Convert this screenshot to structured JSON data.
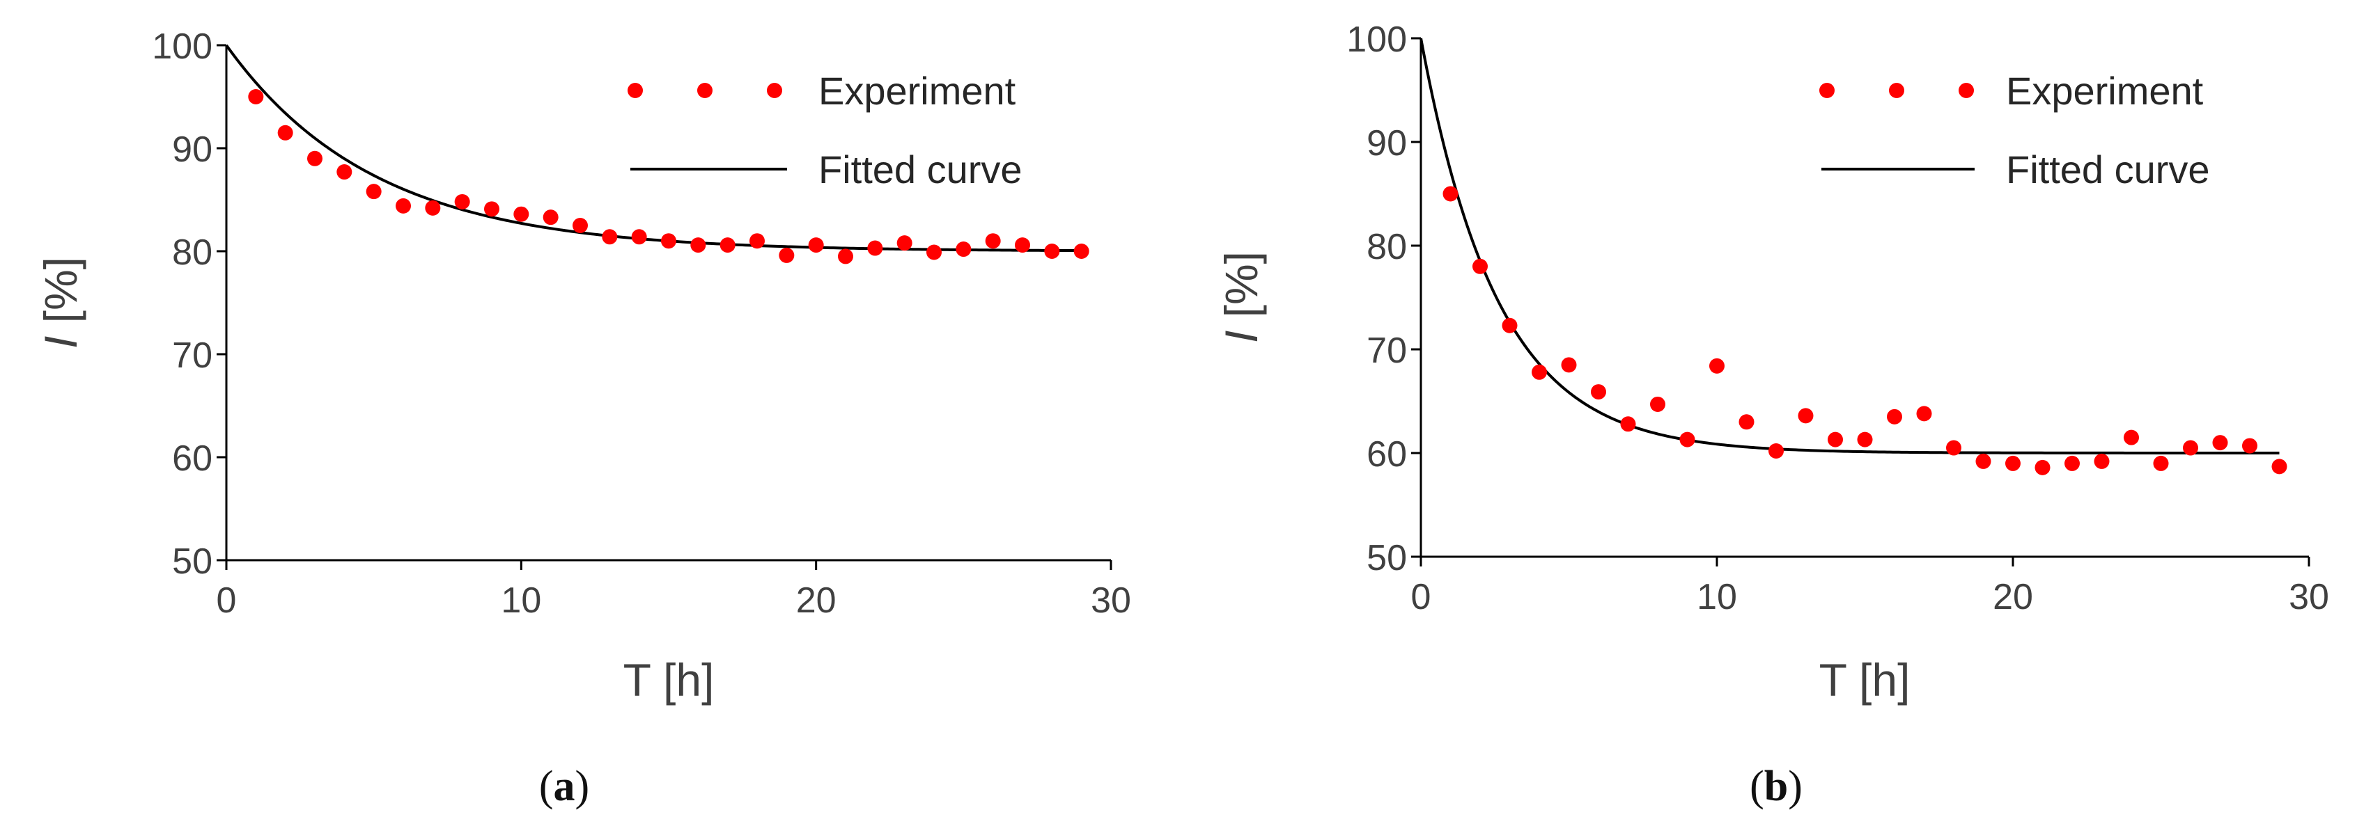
{
  "colors": {
    "experiment": "#ff0000",
    "fitted": "#000000",
    "axis": "#000000",
    "text": "#404040"
  },
  "chart_data": [
    {
      "type": "scatter",
      "panel_label": "a",
      "xlabel": "T [h]",
      "ylabel_italic": "I",
      "ylabel_rest": " [%]",
      "xlim": [
        0,
        30
      ],
      "ylim": [
        50,
        100
      ],
      "xticks": [
        0,
        10,
        20,
        30
      ],
      "yticks": [
        50,
        60,
        70,
        80,
        90,
        100
      ],
      "grid": false,
      "legend_position": "top-right",
      "series": [
        {
          "name": "Experiment",
          "kind": "points",
          "x": [
            1,
            2,
            3,
            4,
            5,
            6,
            7,
            8,
            9,
            10,
            11,
            12,
            13,
            14,
            15,
            16,
            17,
            18,
            19,
            20,
            21,
            22,
            23,
            24,
            25,
            26,
            27,
            28,
            29
          ],
          "y": [
            95.0,
            91.5,
            89.0,
            87.7,
            85.8,
            84.4,
            84.2,
            84.8,
            84.1,
            83.6,
            83.3,
            82.5,
            81.4,
            81.4,
            81.0,
            80.6,
            80.6,
            81.0,
            79.6,
            80.6,
            79.5,
            80.3,
            80.8,
            79.9,
            80.2,
            81.0,
            80.6,
            80.0,
            80.0
          ]
        },
        {
          "name": "Fitted curve",
          "kind": "curve",
          "model": "y0 + A*exp(-x/tau)",
          "y0": 80.0,
          "A": 20.0,
          "tau": 5.0,
          "x_range": [
            0,
            29
          ]
        }
      ]
    },
    {
      "type": "scatter",
      "panel_label": "b",
      "xlabel": "T [h]",
      "ylabel_italic": "I",
      "ylabel_rest": " [%]",
      "xlim": [
        0,
        30
      ],
      "ylim": [
        50,
        100
      ],
      "xticks": [
        0,
        10,
        20,
        30
      ],
      "yticks": [
        50,
        60,
        70,
        80,
        90,
        100
      ],
      "grid": false,
      "legend_position": "top-right",
      "series": [
        {
          "name": "Experiment",
          "kind": "points",
          "x": [
            1,
            2,
            3,
            4,
            5,
            6,
            7,
            8,
            9,
            10,
            11,
            12,
            13,
            14,
            15,
            16,
            17,
            18,
            19,
            20,
            21,
            22,
            23,
            24,
            25,
            26,
            27,
            28,
            29
          ],
          "y": [
            85.0,
            78.0,
            72.3,
            67.8,
            68.5,
            65.9,
            62.8,
            64.7,
            61.3,
            68.4,
            63.0,
            60.2,
            63.6,
            61.3,
            61.3,
            63.5,
            63.8,
            60.5,
            59.2,
            59.0,
            58.6,
            59.0,
            59.2,
            61.5,
            59.0,
            60.5,
            61.0,
            60.7,
            58.7
          ]
        },
        {
          "name": "Fitted curve",
          "kind": "curve",
          "model": "y0 + A*exp(-x/tau)",
          "y0": 60.0,
          "A": 40.0,
          "tau": 2.6,
          "x_range": [
            0,
            29
          ]
        }
      ]
    }
  ]
}
